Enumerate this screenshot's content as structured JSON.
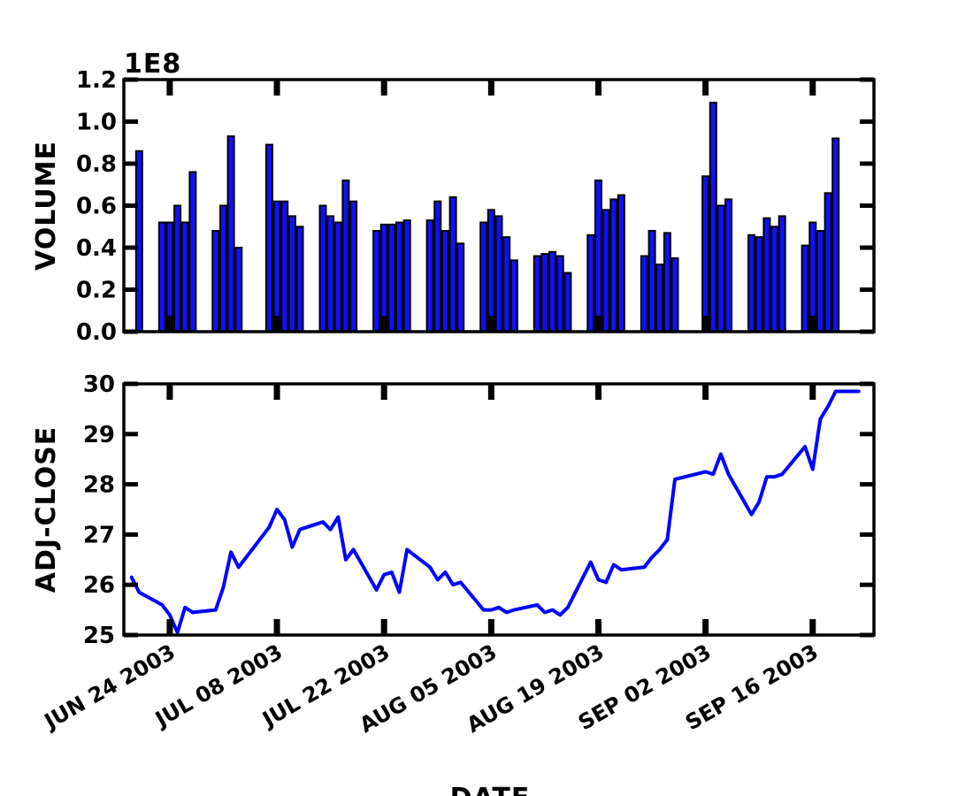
{
  "chart_data": [
    {
      "type": "bar",
      "ylabel": "VOLUME",
      "offset_label": "1E8",
      "ylim": [
        0.0,
        1.2
      ],
      "yticks": [
        "0.0",
        "0.2",
        "0.4",
        "0.6",
        "0.8",
        "1.0",
        "1.2"
      ],
      "xlim": [
        "2003-06-18",
        "2003-09-24"
      ],
      "bar_color": "#1010ff",
      "x": [
        "2003-06-20",
        "2003-06-23",
        "2003-06-24",
        "2003-06-25",
        "2003-06-26",
        "2003-06-27",
        "2003-06-30",
        "2003-07-01",
        "2003-07-02",
        "2003-07-03",
        "2003-07-07",
        "2003-07-08",
        "2003-07-09",
        "2003-07-10",
        "2003-07-11",
        "2003-07-14",
        "2003-07-15",
        "2003-07-16",
        "2003-07-17",
        "2003-07-18",
        "2003-07-21",
        "2003-07-22",
        "2003-07-23",
        "2003-07-24",
        "2003-07-25",
        "2003-07-28",
        "2003-07-29",
        "2003-07-30",
        "2003-07-31",
        "2003-08-01",
        "2003-08-04",
        "2003-08-05",
        "2003-08-06",
        "2003-08-07",
        "2003-08-08",
        "2003-08-11",
        "2003-08-12",
        "2003-08-13",
        "2003-08-14",
        "2003-08-15",
        "2003-08-18",
        "2003-08-19",
        "2003-08-20",
        "2003-08-21",
        "2003-08-22",
        "2003-08-25",
        "2003-08-26",
        "2003-08-27",
        "2003-08-28",
        "2003-08-29",
        "2003-09-02",
        "2003-09-03",
        "2003-09-04",
        "2003-09-05",
        "2003-09-08",
        "2003-09-09",
        "2003-09-10",
        "2003-09-11",
        "2003-09-12",
        "2003-09-15",
        "2003-09-16",
        "2003-09-17",
        "2003-09-18",
        "2003-09-19"
      ],
      "values": [
        0.86,
        0.52,
        0.52,
        0.6,
        0.52,
        0.76,
        0.48,
        0.6,
        0.93,
        0.4,
        0.89,
        0.62,
        0.62,
        0.55,
        0.5,
        0.6,
        0.55,
        0.52,
        0.72,
        0.62,
        0.48,
        0.51,
        0.51,
        0.52,
        0.53,
        0.53,
        0.62,
        0.48,
        0.64,
        0.42,
        0.52,
        0.58,
        0.55,
        0.45,
        0.34,
        0.36,
        0.37,
        0.38,
        0.36,
        0.28,
        0.46,
        0.72,
        0.58,
        0.63,
        0.65,
        0.36,
        0.48,
        0.32,
        0.47,
        0.35,
        0.74,
        1.09,
        0.6,
        0.63,
        0.46,
        0.45,
        0.54,
        0.5,
        0.55,
        0.41,
        0.52,
        0.48,
        0.66,
        0.92
      ]
    },
    {
      "type": "line",
      "ylabel": "ADJ-CLOSE",
      "xlabel": "DATE",
      "ylim": [
        25,
        30
      ],
      "yticks": [
        "25",
        "26",
        "27",
        "28",
        "29",
        "30"
      ],
      "xlim": [
        "2003-06-18",
        "2003-09-24"
      ],
      "line_color": "#0000ff",
      "x": [
        "2003-06-19",
        "2003-06-20",
        "2003-06-23",
        "2003-06-24",
        "2003-06-25",
        "2003-06-26",
        "2003-06-27",
        "2003-06-30",
        "2003-07-01",
        "2003-07-02",
        "2003-07-03",
        "2003-07-07",
        "2003-07-08",
        "2003-07-09",
        "2003-07-10",
        "2003-07-11",
        "2003-07-14",
        "2003-07-15",
        "2003-07-16",
        "2003-07-17",
        "2003-07-18",
        "2003-07-21",
        "2003-07-22",
        "2003-07-23",
        "2003-07-24",
        "2003-07-25",
        "2003-07-28",
        "2003-07-29",
        "2003-07-30",
        "2003-07-31",
        "2003-08-01",
        "2003-08-04",
        "2003-08-05",
        "2003-08-06",
        "2003-08-07",
        "2003-08-08",
        "2003-08-11",
        "2003-08-12",
        "2003-08-13",
        "2003-08-14",
        "2003-08-15",
        "2003-08-18",
        "2003-08-19",
        "2003-08-20",
        "2003-08-21",
        "2003-08-22",
        "2003-08-25",
        "2003-08-26",
        "2003-08-27",
        "2003-08-28",
        "2003-08-29",
        "2003-09-02",
        "2003-09-03",
        "2003-09-04",
        "2003-09-05",
        "2003-09-08",
        "2003-09-09",
        "2003-09-10",
        "2003-09-11",
        "2003-09-12",
        "2003-09-15",
        "2003-09-16",
        "2003-09-17",
        "2003-09-18",
        "2003-09-19",
        "2003-09-22"
      ],
      "values": [
        26.15,
        25.85,
        25.6,
        25.4,
        25.05,
        25.55,
        25.45,
        25.5,
        25.95,
        26.65,
        26.35,
        27.15,
        27.5,
        27.3,
        26.75,
        27.1,
        27.25,
        27.1,
        27.35,
        26.5,
        26.7,
        25.9,
        26.2,
        26.25,
        25.85,
        26.7,
        26.35,
        26.1,
        26.25,
        26.0,
        26.05,
        25.5,
        25.5,
        25.55,
        25.45,
        25.5,
        25.6,
        25.45,
        25.5,
        25.4,
        25.55,
        26.45,
        26.1,
        26.05,
        26.4,
        26.3,
        26.35,
        26.55,
        26.7,
        26.9,
        28.1,
        28.25,
        28.2,
        28.6,
        28.2,
        27.4,
        27.65,
        28.15,
        28.15,
        28.2,
        28.75,
        28.3,
        29.3,
        29.55,
        29.85,
        29.85
      ]
    }
  ],
  "x_tick_labels": [
    "JUN 24 2003",
    "JUL 08 2003",
    "JUL 22 2003",
    "AUG 05 2003",
    "AUG 19 2003",
    "SEP 02 2003",
    "SEP 16 2003"
  ],
  "x_tick_dates": [
    "2003-06-24",
    "2003-07-08",
    "2003-07-22",
    "2003-08-05",
    "2003-08-19",
    "2003-09-02",
    "2003-09-16"
  ]
}
